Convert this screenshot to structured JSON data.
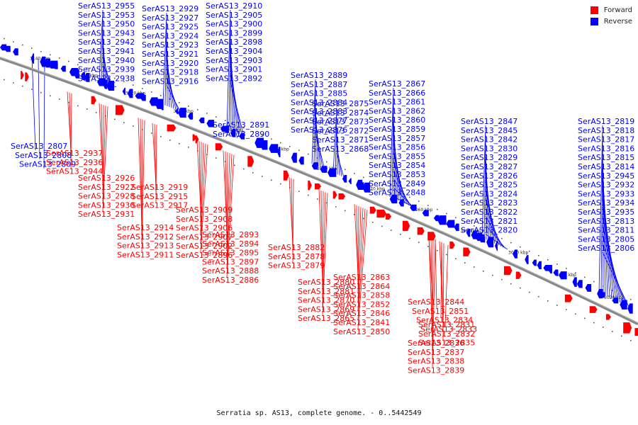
{
  "title": "Serratia sp. AS13, complete genome. - 0..5442549",
  "colors": {
    "forward": "#ff0000",
    "reverse": "#0000ff",
    "axis": "#888888"
  },
  "legend": [
    {
      "label": "Forward",
      "color": "#ff0000"
    },
    {
      "label": "Reverse",
      "color": "#0000ff"
    }
  ],
  "scale_ticks": [
    "3140 kbp",
    "3130 kbp",
    "3120 kbp",
    "3110 kbp",
    "3100 kbp",
    "3090 kbp",
    "3080 kbp",
    "3070 kbp",
    "3060 kbp",
    "3050 kbp",
    "3040 kbp",
    "3030 kbp",
    "3020 kbp",
    "3010 kbp"
  ],
  "reverse_labels": [
    "SerAS13_2955",
    "SerAS13_2953",
    "SerAS13_2950",
    "SerAS13_2943",
    "SerAS13_2942",
    "SerAS13_2941",
    "SerAS13_2940",
    "SerAS13_2939",
    "SerAS13_2938",
    "SerAS13_2929",
    "SerAS13_2927",
    "SerAS13_2925",
    "SerAS13_2924",
    "SerAS13_2923",
    "SerAS13_2921",
    "SerAS13_2920",
    "SerAS13_2918",
    "SerAS13_2916",
    "SerAS13_2910",
    "SerAS13_2905",
    "SerAS13_2900",
    "SerAS13_2899",
    "SerAS13_2898",
    "SerAS13_2904",
    "SerAS13_2903",
    "SerAS13_2901",
    "SerAS13_2892",
    "SerAS13_2891",
    "SerAS13_2890",
    "SerAS13_2889",
    "SerAS13_2887",
    "SerAS13_2885",
    "SerAS13_2884",
    "SerAS13_2883",
    "SerAS13_2877",
    "SerAS13_2876",
    "SerAS13_2875",
    "SerAS13_2874",
    "SerAS13_2873",
    "SerAS13_2872",
    "SerAS13_2871",
    "SerAS13_2868",
    "SerAS13_2867",
    "SerAS13_2866",
    "SerAS13_2861",
    "SerAS13_2862",
    "SerAS13_2860",
    "SerAS13_2859",
    "SerAS13_2857",
    "SerAS13_2856",
    "SerAS13_2855",
    "SerAS13_2854",
    "SerAS13_2853",
    "SerAS13_2849",
    "SerAS13_2848",
    "SerAS13_2847",
    "SerAS13_2845",
    "SerAS13_2842",
    "SerAS13_2830",
    "SerAS13_2829",
    "SerAS13_2827",
    "SerAS13_2826",
    "SerAS13_2825",
    "SerAS13_2824",
    "SerAS13_2823",
    "SerAS13_2822",
    "SerAS13_2821",
    "SerAS13_2820",
    "SerAS13_2819",
    "SerAS13_2818",
    "SerAS13_2817",
    "SerAS13_2816",
    "SerAS13_2815",
    "SerAS13_2814",
    "SerAS13_2945",
    "SerAS13_2932",
    "SerAS13_2933",
    "SerAS13_2934",
    "SerAS13_2935",
    "SerAS13_2813",
    "SerAS13_2811",
    "SerAS13_2805",
    "SerAS13_2806",
    "SerAS13_2807",
    "SerAS13_2808",
    "SerAS13_2809"
  ],
  "forward_labels": [
    "SerAS13_2937",
    "SerAS13_2936",
    "SerAS13_2944",
    "SerAS13_2926",
    "SerAS13_2922",
    "SerAS13_2928",
    "SerAS13_2930",
    "SerAS13_2931",
    "SerAS13_2919",
    "SerAS13_2915",
    "SerAS13_2917",
    "SerAS13_2914",
    "SerAS13_2912",
    "SerAS13_2913",
    "SerAS13_2911",
    "SerAS13_2909",
    "SerAS13_2908",
    "SerAS13_2906",
    "SerAS13_2907",
    "SerAS13_2902",
    "SerAS13_2896",
    "SerAS13_2893",
    "SerAS13_2894",
    "SerAS13_2895",
    "SerAS13_2897",
    "SerAS13_2888",
    "SerAS13_2886",
    "SerAS13_2882",
    "SerAS13_2878",
    "SerAS13_2879",
    "SerAS13_2880",
    "SerAS13_2881",
    "SerAS13_2870",
    "SerAS13_2869",
    "SerAS13_2865",
    "SerAS13_2863",
    "SerAS13_2864",
    "SerAS13_2858",
    "SerAS13_2852",
    "SerAS13_2846",
    "SerAS13_2841",
    "SerAS13_2850",
    "SerAS13_2844",
    "SerAS13_2851",
    "SerAS13_2834",
    "SerAS13_2833",
    "SerAS13_2831",
    "SerAS13_2832",
    "SerAS13_2835",
    "SerAS13_2836",
    "SerAS13_2837",
    "SerAS13_2838",
    "SerAS13_2839"
  ]
}
